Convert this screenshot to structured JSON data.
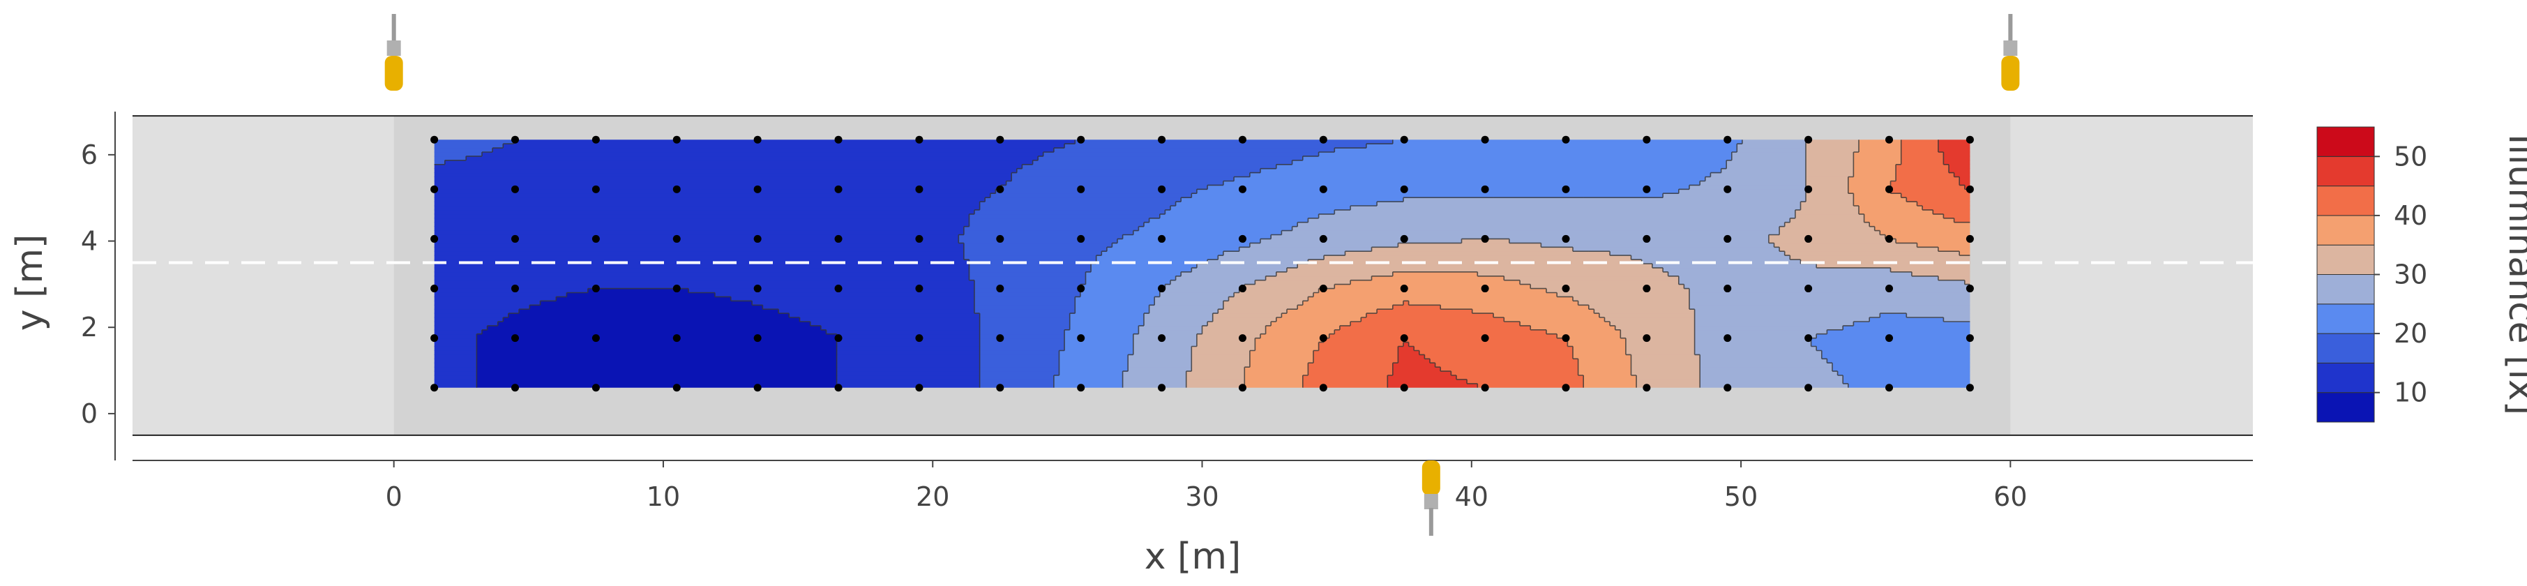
{
  "chart_data": {
    "type": "heatmap",
    "subtype": "filled-contour",
    "xlabel": "x [m]",
    "ylabel": "y [m]",
    "xlim": [
      -9.7,
      69.0
    ],
    "ylim": [
      -0.6,
      7.0
    ],
    "x_ticks": [
      0,
      10,
      20,
      30,
      40,
      50,
      60
    ],
    "y_ticks": [
      0,
      2,
      4,
      6
    ],
    "colorbar": {
      "title": "Illuminance [lx]",
      "range": [
        5,
        55
      ],
      "ticks": [
        10,
        20,
        30,
        40,
        50
      ],
      "levels": [
        5,
        10,
        15,
        20,
        25,
        30,
        35,
        40,
        45,
        50,
        55
      ],
      "colors": [
        "#0a14b4",
        "#1f34cc",
        "#3a5fdc",
        "#5a8af0",
        "#9eafd8",
        "#dcb5a0",
        "#f4a070",
        "#f26e48",
        "#e43a2e",
        "#cc0a1a"
      ]
    },
    "zones": {
      "outer_gray": {
        "x": [
          -9.7,
          69.0
        ],
        "y": [
          -0.5,
          6.9
        ],
        "color": "#e0e0e0"
      },
      "inner_gray": {
        "x": [
          0,
          60
        ],
        "y": [
          -0.5,
          6.9
        ],
        "color": "#d3d3d3"
      }
    },
    "measurement_grid": {
      "x": [
        1.5,
        4.5,
        7.5,
        10.5,
        13.5,
        16.5,
        19.5,
        22.5,
        25.5,
        28.5,
        31.5,
        34.5,
        37.5,
        40.5,
        43.5,
        46.5,
        49.5,
        52.5,
        55.5,
        58.5
      ],
      "y": [
        0.6,
        1.75,
        2.9,
        4.05,
        5.2,
        6.35
      ]
    },
    "illuminance_grid": [
      [
        11,
        9,
        8,
        7,
        8,
        10,
        12,
        16,
        22,
        28,
        35,
        42,
        46,
        45,
        42,
        34,
        28,
        26,
        24,
        21
      ],
      [
        11,
        9,
        7,
        6,
        8,
        10,
        12,
        16,
        21,
        27,
        34,
        40,
        45,
        43,
        40,
        33,
        28,
        25,
        23,
        23
      ],
      [
        12,
        11,
        10,
        10,
        11,
        12,
        13,
        16,
        20,
        25,
        30,
        35,
        38,
        37,
        34,
        31,
        29,
        29,
        27,
        29
      ],
      [
        13,
        13,
        13,
        13,
        14,
        14,
        14,
        16,
        19,
        21,
        24,
        27,
        29,
        30,
        29,
        29,
        29,
        31,
        35,
        38
      ],
      [
        14,
        14,
        14,
        14,
        14,
        14,
        14,
        15,
        17,
        19,
        21,
        23,
        24,
        24,
        24,
        24,
        26,
        30,
        40,
        45
      ],
      [
        16,
        15,
        14,
        14,
        14,
        14,
        14,
        14,
        15,
        16,
        17,
        19,
        20,
        20,
        20,
        21,
        24,
        30,
        38,
        50
      ]
    ],
    "dashed_line_y": 3.5,
    "luminaires_top_x": [
      0,
      60
    ],
    "luminaires_bottom_x": [
      38.5
    ],
    "luminaire_color": "#e8b000"
  }
}
